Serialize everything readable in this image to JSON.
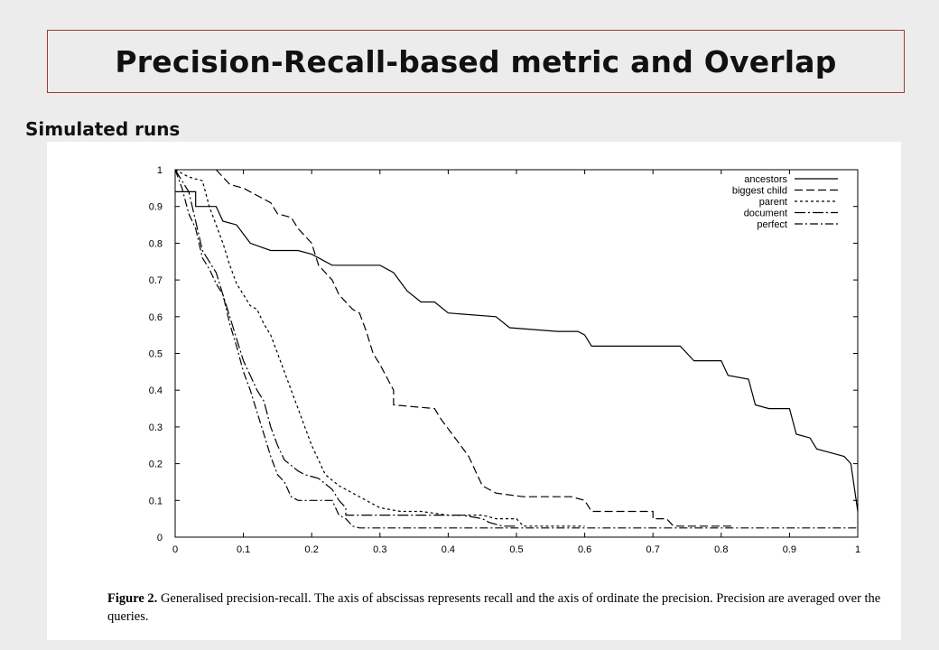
{
  "slide": {
    "title": "Precision-Recall-based metric and Overlap",
    "subtitle": "Simulated runs"
  },
  "caption": {
    "label": "Figure 2.",
    "text": " Generalised precision-recall. The axis of abscissas represents recall and the axis of ordinate the precision. Precision are averaged over the queries."
  },
  "colors": {
    "frame": "#a03a3a",
    "background": "#ececec",
    "figure": "#ffffff",
    "ink": "#000000"
  },
  "chart_data": {
    "type": "line",
    "title": "",
    "xlabel": "",
    "ylabel": "",
    "xlim": [
      0,
      1
    ],
    "ylim": [
      0,
      1
    ],
    "xticks": [
      "0",
      "0.1",
      "0.2",
      "0.3",
      "0.4",
      "0.5",
      "0.6",
      "0.7",
      "0.8",
      "0.9",
      "1"
    ],
    "yticks": [
      "0",
      "0.1",
      "0.2",
      "0.3",
      "0.4",
      "0.5",
      "0.6",
      "0.7",
      "0.8",
      "0.9",
      "1"
    ],
    "grid": false,
    "legend_position": "top-right",
    "series": [
      {
        "name": "ancestors",
        "dash": "",
        "points": [
          [
            0,
            0.94
          ],
          [
            0.03,
            0.94
          ],
          [
            0.03,
            0.9
          ],
          [
            0.06,
            0.9
          ],
          [
            0.07,
            0.86
          ],
          [
            0.09,
            0.85
          ],
          [
            0.11,
            0.8
          ],
          [
            0.14,
            0.78
          ],
          [
            0.18,
            0.78
          ],
          [
            0.2,
            0.77
          ],
          [
            0.23,
            0.74
          ],
          [
            0.3,
            0.74
          ],
          [
            0.32,
            0.72
          ],
          [
            0.34,
            0.67
          ],
          [
            0.36,
            0.64
          ],
          [
            0.38,
            0.64
          ],
          [
            0.4,
            0.61
          ],
          [
            0.47,
            0.6
          ],
          [
            0.49,
            0.57
          ],
          [
            0.56,
            0.56
          ],
          [
            0.59,
            0.56
          ],
          [
            0.6,
            0.55
          ],
          [
            0.61,
            0.52
          ],
          [
            0.66,
            0.52
          ],
          [
            0.74,
            0.52
          ],
          [
            0.76,
            0.48
          ],
          [
            0.8,
            0.48
          ],
          [
            0.81,
            0.44
          ],
          [
            0.84,
            0.43
          ],
          [
            0.85,
            0.36
          ],
          [
            0.87,
            0.35
          ],
          [
            0.9,
            0.35
          ],
          [
            0.91,
            0.28
          ],
          [
            0.93,
            0.27
          ],
          [
            0.94,
            0.24
          ],
          [
            0.96,
            0.23
          ],
          [
            0.98,
            0.22
          ],
          [
            0.99,
            0.2
          ],
          [
            1.0,
            0.07
          ]
        ]
      },
      {
        "name": "biggest child",
        "dash": "9,4",
        "points": [
          [
            0.06,
            1.0
          ],
          [
            0.08,
            0.96
          ],
          [
            0.1,
            0.95
          ],
          [
            0.12,
            0.93
          ],
          [
            0.14,
            0.91
          ],
          [
            0.15,
            0.88
          ],
          [
            0.17,
            0.87
          ],
          [
            0.18,
            0.84
          ],
          [
            0.2,
            0.8
          ],
          [
            0.21,
            0.74
          ],
          [
            0.23,
            0.7
          ],
          [
            0.24,
            0.66
          ],
          [
            0.26,
            0.62
          ],
          [
            0.27,
            0.61
          ],
          [
            0.28,
            0.56
          ],
          [
            0.29,
            0.5
          ],
          [
            0.3,
            0.47
          ],
          [
            0.32,
            0.4
          ],
          [
            0.32,
            0.36
          ],
          [
            0.38,
            0.35
          ],
          [
            0.39,
            0.32
          ],
          [
            0.41,
            0.27
          ],
          [
            0.43,
            0.22
          ],
          [
            0.44,
            0.18
          ],
          [
            0.45,
            0.14
          ],
          [
            0.47,
            0.12
          ],
          [
            0.51,
            0.11
          ],
          [
            0.58,
            0.11
          ],
          [
            0.6,
            0.1
          ],
          [
            0.61,
            0.07
          ],
          [
            0.7,
            0.07
          ],
          [
            0.7,
            0.05
          ],
          [
            0.72,
            0.05
          ],
          [
            0.73,
            0.03
          ],
          [
            0.82,
            0.03
          ]
        ]
      },
      {
        "name": "parent",
        "dash": "3,3",
        "points": [
          [
            0,
            1.0
          ],
          [
            0.02,
            0.98
          ],
          [
            0.04,
            0.97
          ],
          [
            0.05,
            0.9
          ],
          [
            0.07,
            0.8
          ],
          [
            0.08,
            0.74
          ],
          [
            0.09,
            0.69
          ],
          [
            0.1,
            0.66
          ],
          [
            0.11,
            0.63
          ],
          [
            0.12,
            0.62
          ],
          [
            0.13,
            0.58
          ],
          [
            0.14,
            0.55
          ],
          [
            0.15,
            0.5
          ],
          [
            0.16,
            0.45
          ],
          [
            0.17,
            0.4
          ],
          [
            0.18,
            0.35
          ],
          [
            0.19,
            0.3
          ],
          [
            0.2,
            0.25
          ],
          [
            0.21,
            0.21
          ],
          [
            0.22,
            0.17
          ],
          [
            0.24,
            0.14
          ],
          [
            0.26,
            0.12
          ],
          [
            0.29,
            0.09
          ],
          [
            0.3,
            0.08
          ],
          [
            0.33,
            0.07
          ],
          [
            0.36,
            0.07
          ],
          [
            0.4,
            0.06
          ],
          [
            0.45,
            0.06
          ],
          [
            0.47,
            0.05
          ],
          [
            0.5,
            0.05
          ],
          [
            0.51,
            0.03
          ],
          [
            0.6,
            0.03
          ]
        ]
      },
      {
        "name": "document",
        "dash": "12,3,2,3",
        "points": [
          [
            0,
            1.0
          ],
          [
            0.02,
            0.94
          ],
          [
            0.03,
            0.86
          ],
          [
            0.04,
            0.78
          ],
          [
            0.05,
            0.75
          ],
          [
            0.06,
            0.72
          ],
          [
            0.07,
            0.66
          ],
          [
            0.08,
            0.6
          ],
          [
            0.09,
            0.54
          ],
          [
            0.1,
            0.48
          ],
          [
            0.11,
            0.44
          ],
          [
            0.12,
            0.4
          ],
          [
            0.13,
            0.37
          ],
          [
            0.14,
            0.3
          ],
          [
            0.15,
            0.25
          ],
          [
            0.16,
            0.21
          ],
          [
            0.18,
            0.18
          ],
          [
            0.19,
            0.17
          ],
          [
            0.21,
            0.16
          ],
          [
            0.23,
            0.13
          ],
          [
            0.24,
            0.1
          ],
          [
            0.25,
            0.08
          ],
          [
            0.25,
            0.06
          ],
          [
            0.28,
            0.06
          ],
          [
            0.32,
            0.06
          ],
          [
            0.37,
            0.06
          ],
          [
            0.42,
            0.06
          ],
          [
            0.45,
            0.05
          ],
          [
            0.46,
            0.04
          ],
          [
            0.48,
            0.03
          ],
          [
            0.5,
            0.03
          ]
        ]
      },
      {
        "name": "perfect",
        "dash": "9,3,2,3",
        "points": [
          [
            0,
            1.0
          ],
          [
            0.01,
            0.95
          ],
          [
            0.02,
            0.88
          ],
          [
            0.03,
            0.84
          ],
          [
            0.04,
            0.76
          ],
          [
            0.05,
            0.73
          ],
          [
            0.06,
            0.69
          ],
          [
            0.07,
            0.66
          ],
          [
            0.08,
            0.58
          ],
          [
            0.09,
            0.52
          ],
          [
            0.1,
            0.45
          ],
          [
            0.11,
            0.4
          ],
          [
            0.12,
            0.34
          ],
          [
            0.13,
            0.28
          ],
          [
            0.14,
            0.22
          ],
          [
            0.15,
            0.17
          ],
          [
            0.16,
            0.15
          ],
          [
            0.17,
            0.11
          ],
          [
            0.18,
            0.1
          ],
          [
            0.23,
            0.1
          ],
          [
            0.24,
            0.06
          ],
          [
            0.25,
            0.05
          ],
          [
            0.26,
            0.03
          ],
          [
            0.27,
            0.025
          ],
          [
            0.3,
            0.025
          ],
          [
            0.4,
            0.025
          ],
          [
            0.5,
            0.025
          ],
          [
            0.6,
            0.025
          ],
          [
            0.8,
            0.025
          ],
          [
            1.0,
            0.025
          ]
        ]
      }
    ]
  }
}
